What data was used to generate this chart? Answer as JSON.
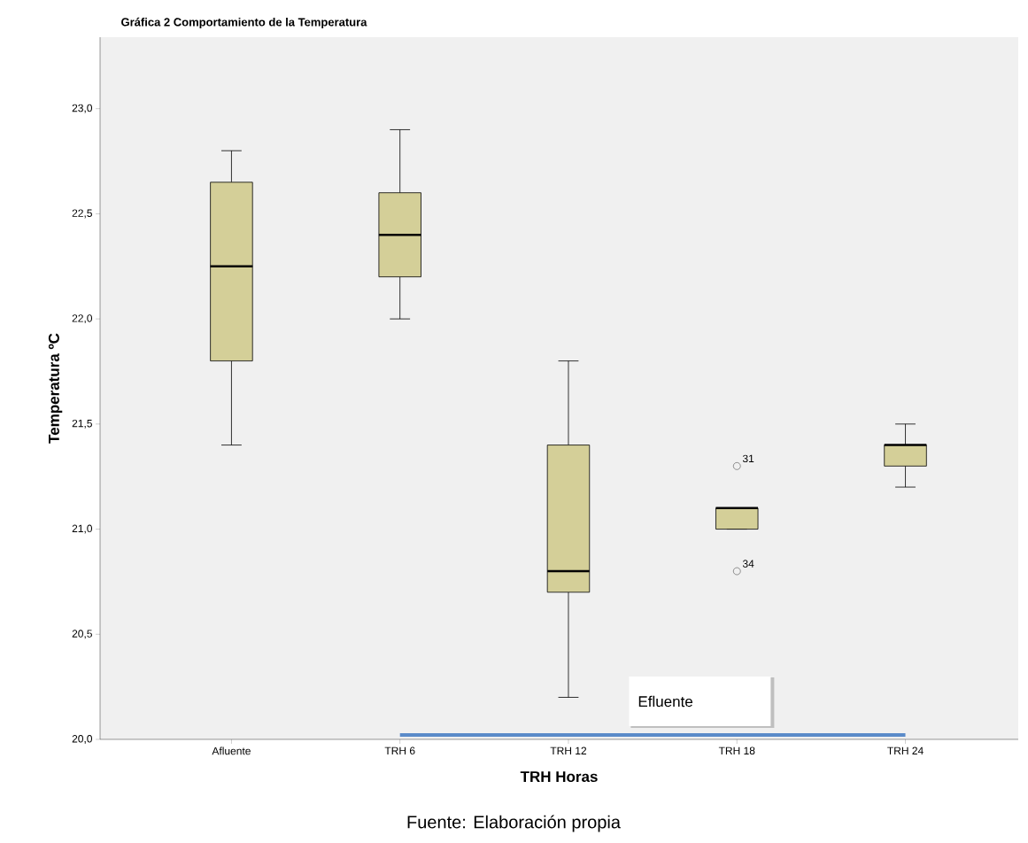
{
  "chart_data": {
    "type": "box",
    "title": "Gráfica 2 Comportamiento de la Temperatura",
    "xlabel": "TRH Horas",
    "ylabel": "Temperatura ºC",
    "categories": [
      "Afluente",
      "TRH 6",
      "TRH 12",
      "TRH 18",
      "TRH 24"
    ],
    "color": "#d4cf98",
    "boxes": [
      {
        "low": 21.4,
        "q1": 21.8,
        "median": 22.25,
        "q3": 22.65,
        "high": 22.8
      },
      {
        "low": 22.0,
        "q1": 22.2,
        "median": 22.4,
        "q3": 22.6,
        "high": 22.9
      },
      {
        "low": 20.2,
        "q1": 20.7,
        "median": 20.8,
        "q3": 21.4,
        "high": 21.8
      },
      {
        "low": 21.0,
        "q1": 21.0,
        "median": 21.1,
        "q3": 21.1,
        "high": 21.1,
        "outliers": [
          21.3,
          20.8
        ]
      },
      {
        "low": 21.2,
        "q1": 21.3,
        "median": 21.4,
        "q3": 21.4,
        "high": 21.5
      }
    ],
    "ylim": [
      20.0,
      23.34
    ],
    "yticks": [
      {
        "value": 20.0,
        "label": "20,0"
      },
      {
        "value": 20.5,
        "label": "20,5"
      },
      {
        "value": 21.0,
        "label": "21,0"
      },
      {
        "value": 21.5,
        "label": "21,5"
      },
      {
        "value": 22.0,
        "label": "22,0"
      },
      {
        "value": 22.5,
        "label": "22,5"
      },
      {
        "value": 23.0,
        "label": "23,0"
      }
    ],
    "grid": false,
    "marker": "circle",
    "annotations": [
      "Efluente",
      "31",
      "34",
      "Fuente: Elaboración propia"
    ]
  }
}
